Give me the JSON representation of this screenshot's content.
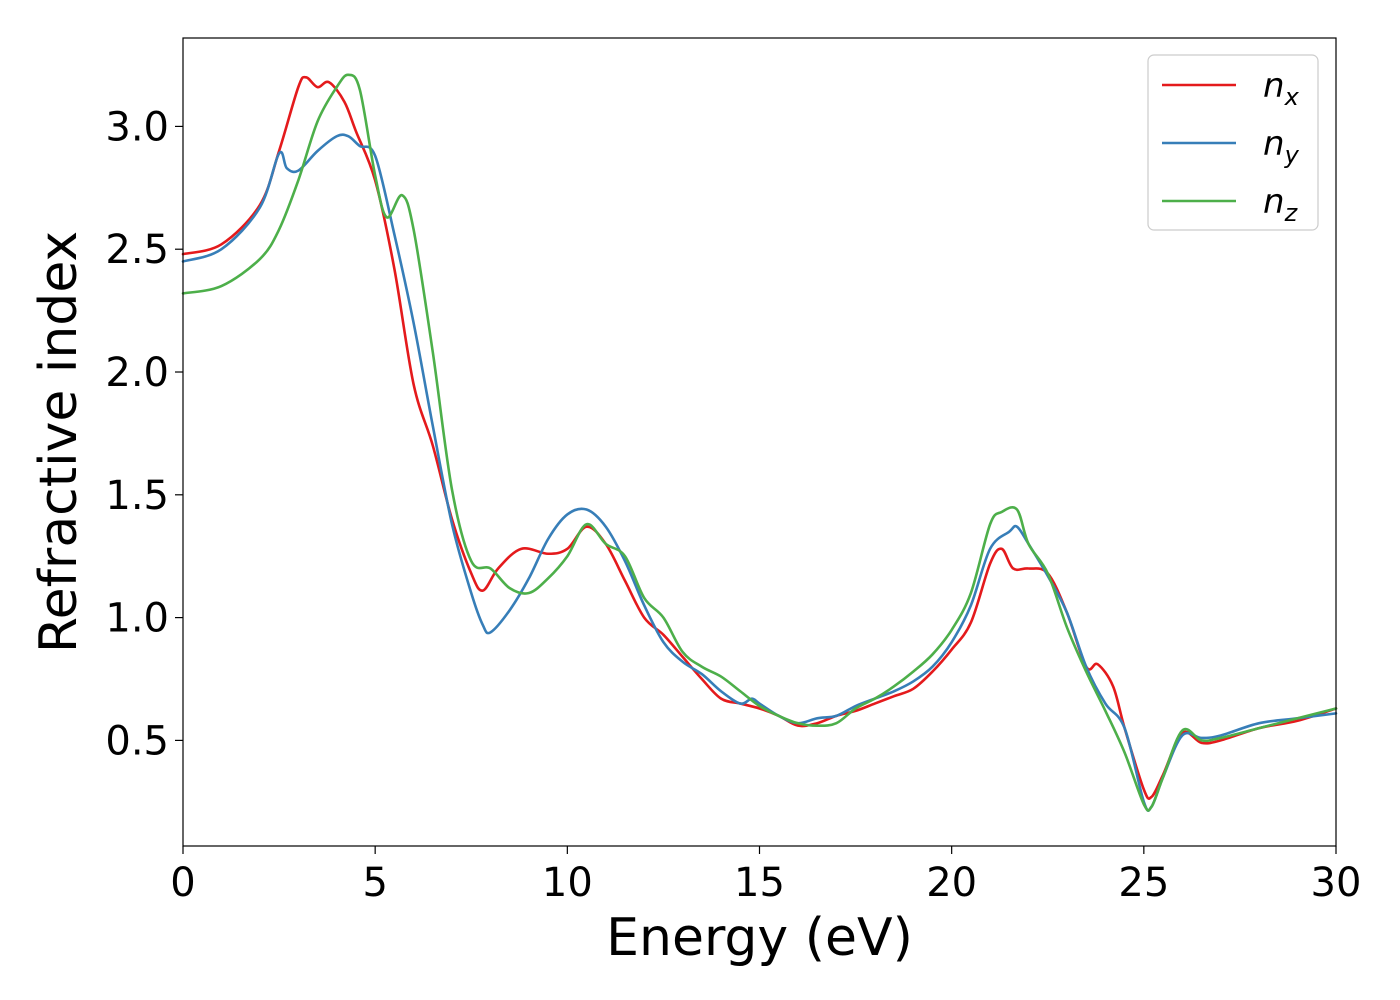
{
  "chart_data": {
    "type": "line",
    "title": "",
    "xlabel": "Energy (eV)",
    "ylabel": "Refractive index",
    "xlim": [
      0,
      30
    ],
    "ylim": [
      0.07,
      3.36
    ],
    "xticks": [
      0,
      5,
      10,
      15,
      20,
      25,
      30
    ],
    "xtick_labels": [
      "0",
      "5",
      "10",
      "15",
      "20",
      "25",
      "30"
    ],
    "yticks": [
      0.5,
      1.0,
      1.5,
      2.0,
      2.5,
      3.0
    ],
    "ytick_labels": [
      "0.5",
      "1.0",
      "1.5",
      "2.0",
      "2.5",
      "3.0"
    ],
    "grid": false,
    "legend_position": "top-right",
    "series": [
      {
        "name": "n_x",
        "label_base": "n",
        "label_sub": "x",
        "color": "#e41a1c",
        "x": [
          0,
          1,
          2,
          2.5,
          3,
          3.2,
          3.5,
          3.8,
          4.2,
          4.5,
          5,
          5.5,
          6,
          6.5,
          7,
          7.5,
          7.8,
          8.2,
          8.8,
          9.5,
          10,
          10.5,
          11,
          11.5,
          12,
          12.5,
          13,
          13.5,
          14,
          14.5,
          15,
          15.5,
          16,
          16.5,
          17,
          17.5,
          18,
          18.5,
          19,
          19.5,
          20,
          20.5,
          21,
          21.3,
          21.6,
          22,
          22.5,
          23,
          23.5,
          23.8,
          24.2,
          24.5,
          25,
          25.2,
          25.5,
          26,
          26.5,
          27,
          28,
          29,
          30
        ],
        "y": [
          2.48,
          2.52,
          2.68,
          2.9,
          3.16,
          3.2,
          3.16,
          3.18,
          3.1,
          2.98,
          2.78,
          2.42,
          1.95,
          1.7,
          1.4,
          1.18,
          1.11,
          1.2,
          1.28,
          1.26,
          1.28,
          1.37,
          1.3,
          1.15,
          1.0,
          0.93,
          0.84,
          0.75,
          0.67,
          0.65,
          0.63,
          0.6,
          0.56,
          0.57,
          0.6,
          0.62,
          0.65,
          0.68,
          0.71,
          0.78,
          0.87,
          0.98,
          1.22,
          1.28,
          1.2,
          1.2,
          1.18,
          1.02,
          0.8,
          0.81,
          0.72,
          0.55,
          0.3,
          0.27,
          0.36,
          0.53,
          0.49,
          0.5,
          0.55,
          0.58,
          0.63
        ]
      },
      {
        "name": "n_y",
        "label_base": "n",
        "label_sub": "y",
        "color": "#377eb8",
        "x": [
          0,
          1,
          2,
          2.5,
          2.7,
          3,
          3.5,
          4,
          4.3,
          4.6,
          5,
          5.5,
          6,
          6.5,
          7,
          7.5,
          7.8,
          8,
          8.5,
          9,
          9.5,
          10,
          10.5,
          11,
          11.5,
          12,
          12.5,
          13,
          13.5,
          14,
          14.5,
          14.8,
          15,
          15.5,
          16,
          16.5,
          17,
          17.5,
          18,
          18.5,
          19,
          19.5,
          20,
          20.5,
          21,
          21.5,
          21.7,
          22,
          22.5,
          23,
          23.5,
          24,
          24.5,
          25,
          25.2,
          25.5,
          26,
          26.5,
          27,
          28,
          29,
          30
        ],
        "y": [
          2.45,
          2.5,
          2.67,
          2.89,
          2.83,
          2.82,
          2.9,
          2.96,
          2.96,
          2.92,
          2.88,
          2.56,
          2.2,
          1.78,
          1.38,
          1.1,
          0.97,
          0.94,
          1.03,
          1.16,
          1.32,
          1.42,
          1.44,
          1.37,
          1.23,
          1.05,
          0.9,
          0.82,
          0.77,
          0.7,
          0.65,
          0.67,
          0.65,
          0.6,
          0.57,
          0.59,
          0.6,
          0.64,
          0.67,
          0.7,
          0.74,
          0.8,
          0.9,
          1.05,
          1.28,
          1.35,
          1.37,
          1.3,
          1.17,
          1.02,
          0.8,
          0.65,
          0.55,
          0.25,
          0.23,
          0.35,
          0.52,
          0.51,
          0.52,
          0.57,
          0.59,
          0.61
        ]
      },
      {
        "name": "n_z",
        "label_base": "n",
        "label_sub": "z",
        "color": "#4daf4a",
        "x": [
          0,
          1,
          2,
          2.5,
          3,
          3.5,
          4,
          4.3,
          4.6,
          5,
          5.3,
          5.7,
          6,
          6.5,
          7,
          7.5,
          8,
          8.5,
          9,
          9.5,
          10,
          10.5,
          11,
          11.5,
          12,
          12.5,
          13,
          13.5,
          14,
          14.5,
          15,
          15.5,
          16,
          16.5,
          17,
          17.5,
          18,
          18.5,
          19,
          19.5,
          20,
          20.5,
          21,
          21.3,
          21.7,
          22,
          22.5,
          23,
          23.5,
          24,
          24.5,
          25,
          25.2,
          25.5,
          26,
          26.5,
          27,
          28,
          29,
          30
        ],
        "y": [
          2.32,
          2.35,
          2.46,
          2.58,
          2.78,
          3.02,
          3.16,
          3.21,
          3.15,
          2.8,
          2.63,
          2.72,
          2.58,
          2.08,
          1.52,
          1.23,
          1.2,
          1.12,
          1.1,
          1.16,
          1.25,
          1.38,
          1.3,
          1.25,
          1.08,
          1.0,
          0.86,
          0.8,
          0.76,
          0.7,
          0.64,
          0.6,
          0.57,
          0.56,
          0.57,
          0.63,
          0.67,
          0.72,
          0.78,
          0.85,
          0.95,
          1.1,
          1.38,
          1.43,
          1.44,
          1.3,
          1.18,
          0.96,
          0.78,
          0.62,
          0.45,
          0.24,
          0.23,
          0.35,
          0.54,
          0.5,
          0.51,
          0.55,
          0.59,
          0.63
        ]
      }
    ]
  }
}
